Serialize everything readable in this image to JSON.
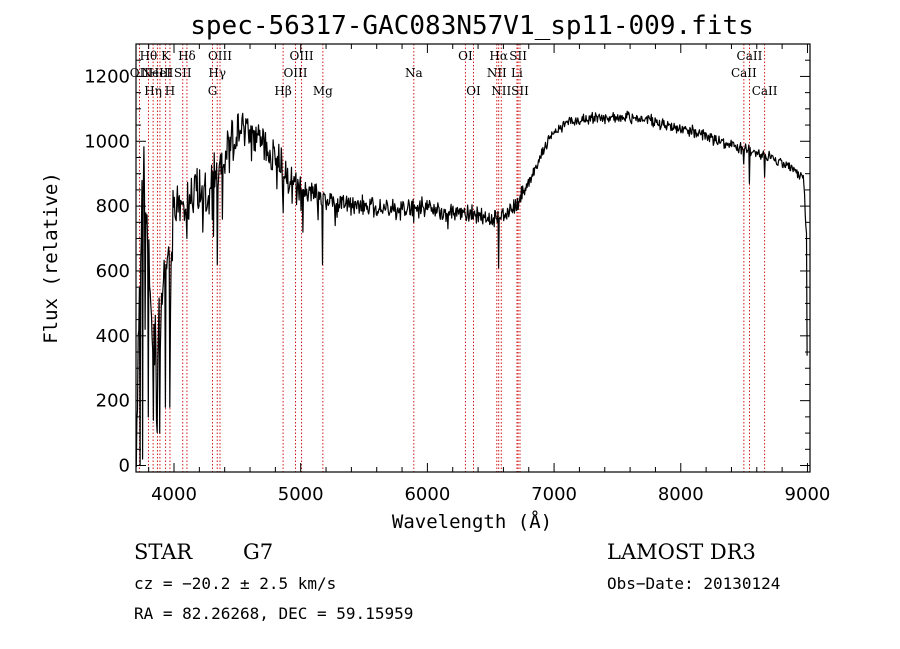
{
  "chart_data": {
    "type": "line",
    "title": "spec-56317-GAC083N57V1_sp11-009.fits",
    "xlabel": "Wavelength (Å)",
    "ylabel": "Flux (relative)",
    "xlim": [
      3700,
      9020
    ],
    "ylim": [
      -20,
      1300
    ],
    "x_ticks": [
      4000,
      5000,
      6000,
      7000,
      8000,
      9000
    ],
    "y_ticks": [
      0,
      200,
      400,
      600,
      800,
      1000,
      1200
    ],
    "spectrum_anchors": [
      [
        3700,
        20
      ],
      [
        3720,
        400
      ],
      [
        3760,
        900
      ],
      [
        3800,
        650
      ],
      [
        3830,
        420
      ],
      [
        3860,
        420
      ],
      [
        3900,
        450
      ],
      [
        3950,
        600
      ],
      [
        4000,
        780
      ],
      [
        4100,
        820
      ],
      [
        4200,
        840
      ],
      [
        4300,
        860
      ],
      [
        4400,
        940
      ],
      [
        4500,
        1040
      ],
      [
        4600,
        1030
      ],
      [
        4700,
        1000
      ],
      [
        4800,
        950
      ],
      [
        4900,
        890
      ],
      [
        5000,
        850
      ],
      [
        5100,
        840
      ],
      [
        5200,
        815
      ],
      [
        5400,
        805
      ],
      [
        5600,
        795
      ],
      [
        5800,
        790
      ],
      [
        6000,
        795
      ],
      [
        6200,
        775
      ],
      [
        6400,
        770
      ],
      [
        6500,
        755
      ],
      [
        6600,
        780
      ],
      [
        6700,
        800
      ],
      [
        6800,
        870
      ],
      [
        6900,
        960
      ],
      [
        7000,
        1030
      ],
      [
        7100,
        1060
      ],
      [
        7300,
        1070
      ],
      [
        7500,
        1075
      ],
      [
        7700,
        1070
      ],
      [
        7900,
        1050
      ],
      [
        8100,
        1030
      ],
      [
        8300,
        1000
      ],
      [
        8500,
        975
      ],
      [
        8700,
        950
      ],
      [
        8900,
        910
      ],
      [
        8970,
        880
      ],
      [
        9000,
        640
      ]
    ],
    "spectrum_dips": [
      [
        3734,
        0
      ],
      [
        3752,
        20
      ],
      [
        3770,
        420
      ],
      [
        3798,
        150
      ],
      [
        3835,
        140
      ],
      [
        3889,
        100
      ],
      [
        3934,
        180
      ],
      [
        3968,
        180
      ],
      [
        4102,
        700
      ],
      [
        4227,
        720
      ],
      [
        4341,
        620
      ],
      [
        4384,
        760
      ],
      [
        4861,
        780
      ],
      [
        5015,
        720
      ],
      [
        5173,
        620
      ],
      [
        5270,
        740
      ],
      [
        5893,
        750
      ],
      [
        6163,
        730
      ],
      [
        6564,
        610
      ],
      [
        8498,
        930
      ],
      [
        8542,
        870
      ],
      [
        8662,
        890
      ],
      [
        9000,
        340
      ]
    ],
    "spectrum_noise": [
      {
        "from": 3700,
        "to": 4000,
        "amp": 200
      },
      {
        "from": 4000,
        "to": 4500,
        "amp": 130
      },
      {
        "from": 4500,
        "to": 5000,
        "amp": 95
      },
      {
        "from": 5000,
        "to": 6000,
        "amp": 50
      },
      {
        "from": 6000,
        "to": 6800,
        "amp": 45
      },
      {
        "from": 6800,
        "to": 9020,
        "amp": 28
      }
    ],
    "spectral_lines": [
      {
        "wl": 3727,
        "label": "OII",
        "row": 1
      },
      {
        "wl": 3798,
        "label": "Hθ",
        "row": 0
      },
      {
        "wl": 3835,
        "label": "Hη",
        "row": 2
      },
      {
        "wl": 3869,
        "label": "NeIII",
        "row": 1
      },
      {
        "wl": 3889,
        "label": "HeI",
        "row": 1
      },
      {
        "wl": 3934,
        "label": "K",
        "row": 0
      },
      {
        "wl": 3968,
        "label": "H",
        "row": 2
      },
      {
        "wl": 4069,
        "label": "SII",
        "row": 1
      },
      {
        "wl": 4102,
        "label": "Hδ",
        "row": 0
      },
      {
        "wl": 4304,
        "label": "G",
        "row": 2
      },
      {
        "wl": 4341,
        "label": "Hγ",
        "row": 1
      },
      {
        "wl": 4363,
        "label": "OIII",
        "row": 0
      },
      {
        "wl": 4861,
        "label": "Hβ",
        "row": 2
      },
      {
        "wl": 4959,
        "label": "OIII",
        "row": 1
      },
      {
        "wl": 5007,
        "label": "OIII",
        "row": 0
      },
      {
        "wl": 5175,
        "label": "Mg",
        "row": 2
      },
      {
        "wl": 5893,
        "label": "Na",
        "row": 1
      },
      {
        "wl": 6300,
        "label": "OI",
        "row": 0
      },
      {
        "wl": 6364,
        "label": "OI",
        "row": 2
      },
      {
        "wl": 6548,
        "label": "NII",
        "row": 1
      },
      {
        "wl": 6563,
        "label": "Hα",
        "row": 0
      },
      {
        "wl": 6583,
        "label": "NII",
        "row": 2
      },
      {
        "wl": 6707,
        "label": "Li",
        "row": 1
      },
      {
        "wl": 6716,
        "label": "SII",
        "row": 0
      },
      {
        "wl": 6731,
        "label": "SII",
        "row": 2
      },
      {
        "wl": 8498,
        "label": "CaII",
        "row": 1
      },
      {
        "wl": 8542,
        "label": "CaII",
        "row": 0
      },
      {
        "wl": 8662,
        "label": "CaII",
        "row": 2
      }
    ]
  },
  "info": {
    "object_class": "STAR",
    "subclass": "G7",
    "survey": "LAMOST DR3",
    "redshift": "cz = −20.2 ± 2.5 km/s",
    "obs_date": "Obs−Date: 20130124",
    "coords": "RA =  82.26268, DEC =  59.15959"
  },
  "colors": {
    "spectrum": "#000000",
    "line_markers": "#cc0000",
    "axes": "#000000",
    "background": "#ffffff"
  }
}
